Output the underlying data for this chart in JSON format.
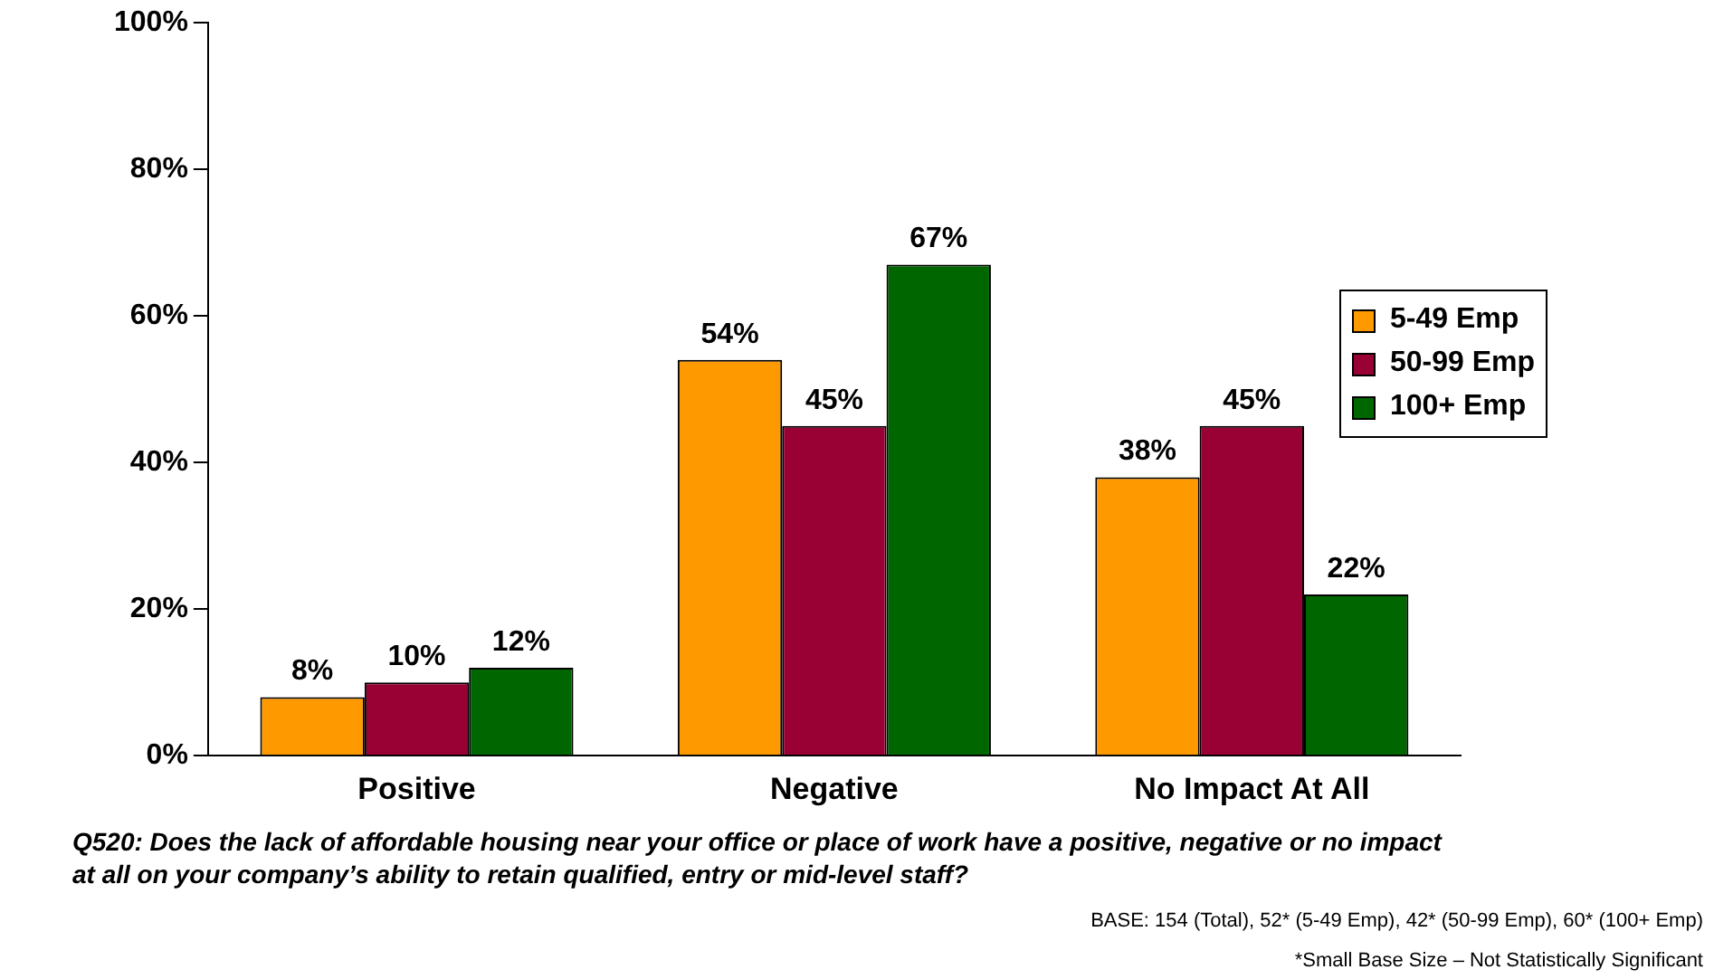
{
  "chart_data": {
    "type": "bar",
    "categories": [
      "Positive",
      "Negative",
      "No Impact At All"
    ],
    "series": [
      {
        "name": "5-49 Emp",
        "color": "#ff9900",
        "values": [
          8,
          54,
          38
        ],
        "value_labels": [
          "8%",
          "54%",
          "38%"
        ]
      },
      {
        "name": "50-99 Emp",
        "color": "#990033",
        "values": [
          10,
          45,
          45
        ],
        "value_labels": [
          "10%",
          "45%",
          "45%"
        ]
      },
      {
        "name": "100+ Emp",
        "color": "#006600",
        "values": [
          12,
          67,
          22
        ],
        "value_labels": [
          "12%",
          "67%",
          "22%"
        ]
      }
    ],
    "ylim": [
      0,
      100
    ],
    "yticks": [
      {
        "value": 0,
        "label": "0%"
      },
      {
        "value": 20,
        "label": "20%"
      },
      {
        "value": 40,
        "label": "40%"
      },
      {
        "value": 60,
        "label": "60%"
      },
      {
        "value": 80,
        "label": "80%"
      },
      {
        "value": 100,
        "label": "100%"
      }
    ],
    "grid": false,
    "legend": "right",
    "annotations": [
      "Q520: Does the lack of affordable housing near your office or place of work have a positive, negative or no impact at all on your company’s ability to retain qualified, entry or mid-level staff?",
      "BASE: 154 (Total), 52* (5-49 Emp), 42* (50-99 Emp), 60* (100+ Emp)",
      "*Small Base Size – Not Statistically Significant"
    ]
  }
}
